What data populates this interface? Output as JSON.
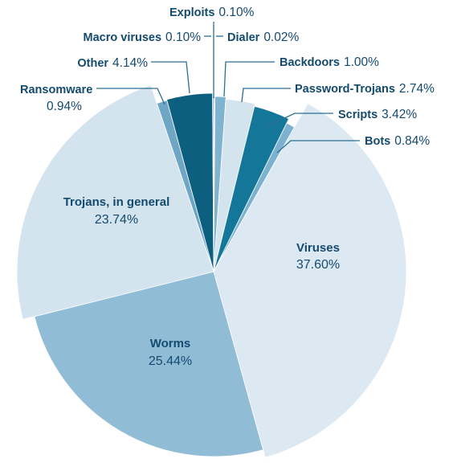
{
  "chart_data": {
    "type": "pie",
    "title": "",
    "series": [
      {
        "values": [
          {
            "label": "Exploits",
            "value": 0.1,
            "value_label": "0.10%",
            "color": "#7fb1cd"
          },
          {
            "label": "Dialer",
            "value": 0.02,
            "value_label": "0.02%",
            "color": "#6ea8c8"
          },
          {
            "label": "Backdoors",
            "value": 1.0,
            "value_label": "1.00%",
            "color": "#7fb3cf"
          },
          {
            "label": "Password-Trojans",
            "value": 2.74,
            "value_label": "2.74%",
            "color": "#d3e4ef"
          },
          {
            "label": "Scripts",
            "value": 3.42,
            "value_label": "3.42%",
            "color": "#14779a"
          },
          {
            "label": "Bots",
            "value": 0.84,
            "value_label": "0.84%",
            "color": "#7cb2d0"
          },
          {
            "label": "Viruses",
            "value": 37.6,
            "value_label": "37.60%",
            "color": "#dde9f2"
          },
          {
            "label": "Worms",
            "value": 25.44,
            "value_label": "25.44%",
            "color": "#91bcd6"
          },
          {
            "label": "Trojans, in general",
            "value": 23.74,
            "value_label": "23.74%",
            "color": "#d4e4ef"
          },
          {
            "label": "Ransomware",
            "value": 0.94,
            "value_label": "0.94%",
            "color": "#6fa6c6"
          },
          {
            "label": "Other",
            "value": 4.14,
            "value_label": "4.14%",
            "color": "#0c5f7f"
          },
          {
            "label": "Macro viruses",
            "value": 0.1,
            "value_label": "0.10%",
            "color": "#5c9bbf"
          }
        ]
      }
    ],
    "legend": "none",
    "labels": "outside leader lines for small slices, inside for large slices"
  }
}
